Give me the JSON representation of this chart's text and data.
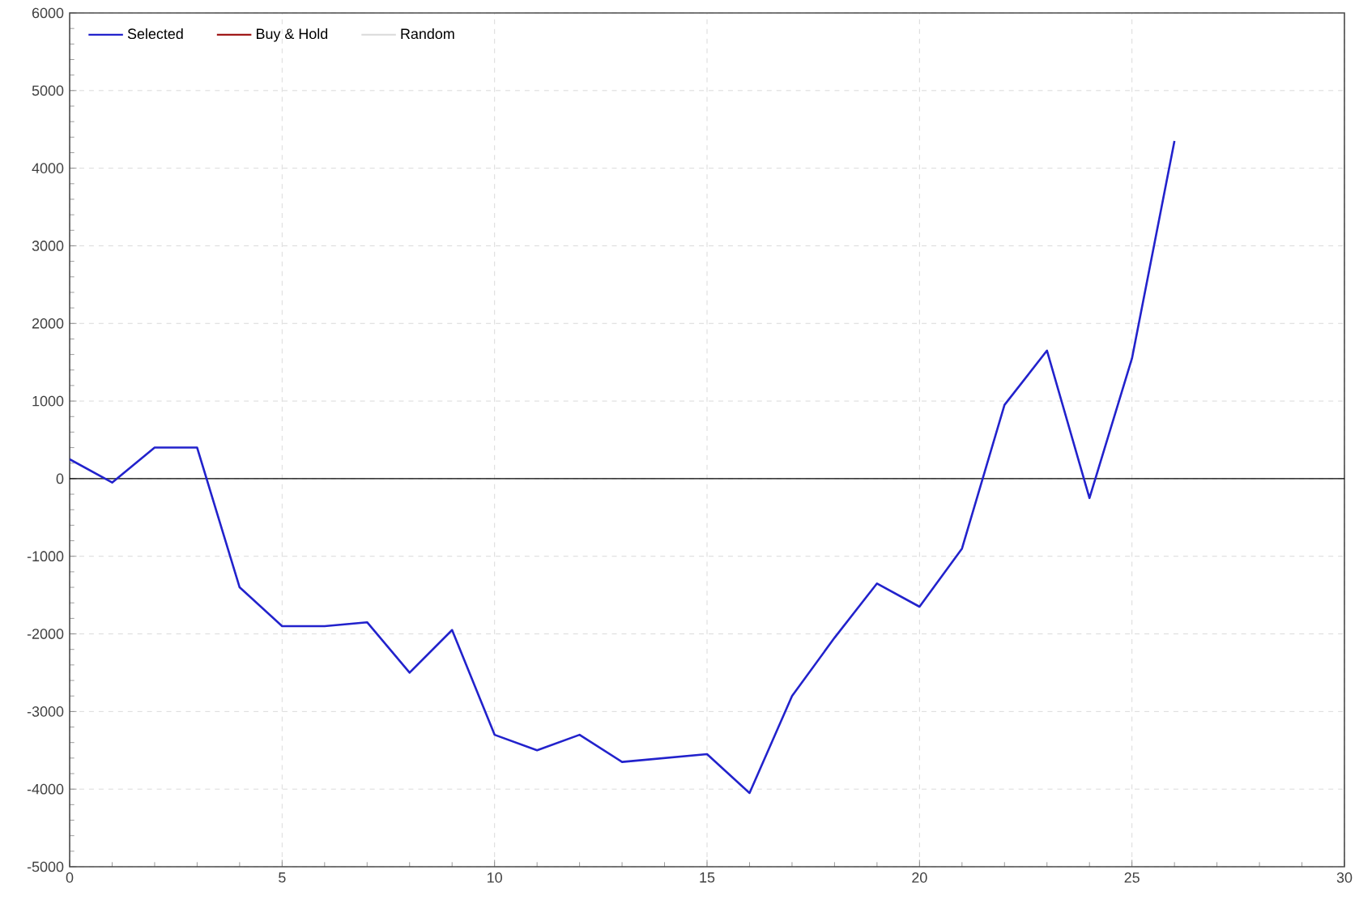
{
  "chart_data": {
    "type": "line",
    "x": [
      0,
      1,
      2,
      3,
      4,
      5,
      6,
      7,
      8,
      9,
      10,
      11,
      12,
      13,
      14,
      15,
      16,
      17,
      18,
      19,
      20,
      21,
      22,
      23,
      24,
      25,
      26
    ],
    "series": [
      {
        "name": "Selected",
        "color": "#2222cc",
        "values": [
          250,
          -50,
          400,
          400,
          -1400,
          -1900,
          -1900,
          -1850,
          -2500,
          -1950,
          -3300,
          -3500,
          -3300,
          -3650,
          -3600,
          -3550,
          -4050,
          -2800,
          -2050,
          -1350,
          -1650,
          -900,
          950,
          1650,
          -250,
          1550,
          4350
        ]
      },
      {
        "name": "Buy & Hold",
        "color": "#a01818",
        "values": [
          null,
          null,
          null,
          null,
          null,
          null,
          null,
          null,
          null,
          null,
          null,
          null,
          null,
          null,
          null,
          null,
          null,
          null,
          null,
          null,
          null,
          null,
          null,
          null,
          null,
          null,
          null
        ]
      },
      {
        "name": "Random",
        "color": "#dddddd",
        "values": [
          null,
          null,
          null,
          null,
          null,
          null,
          null,
          null,
          null,
          null,
          null,
          null,
          null,
          null,
          null,
          null,
          null,
          null,
          null,
          null,
          null,
          null,
          null,
          null,
          null,
          null,
          null
        ]
      }
    ],
    "xlim": [
      0,
      30
    ],
    "xticks": [
      0,
      5,
      10,
      15,
      20,
      25,
      30
    ],
    "ylim": [
      -5000,
      6000
    ],
    "yticks": [
      -5000,
      -4000,
      -3000,
      -2000,
      -1000,
      0,
      1000,
      2000,
      3000,
      4000,
      5000,
      6000
    ],
    "ref_lines": [
      {
        "axis": "y",
        "value": 0,
        "color": "#000000"
      }
    ],
    "grid": true,
    "legend": "top left",
    "marker": "none",
    "line_style": "solid"
  }
}
